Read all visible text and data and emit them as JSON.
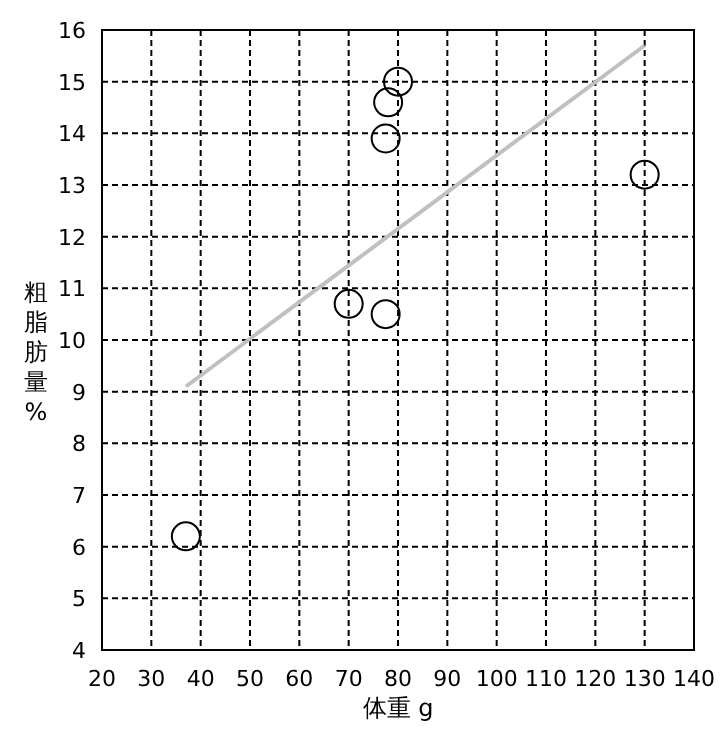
{
  "chart_data": {
    "type": "scatter",
    "xlabel": "体重 g",
    "ylabel": "粗脂肪量%",
    "xlim": [
      20,
      140
    ],
    "ylim": [
      4,
      16
    ],
    "xticks": [
      20,
      30,
      40,
      50,
      60,
      70,
      80,
      90,
      100,
      110,
      120,
      130,
      140
    ],
    "yticks": [
      4,
      5,
      6,
      7,
      8,
      9,
      10,
      11,
      12,
      13,
      14,
      15,
      16
    ],
    "grid": true,
    "series": [
      {
        "color": "#000000",
        "marker": "circle",
        "x": [
          37,
          70,
          77.5,
          77.5,
          78,
          80,
          130
        ],
        "values": [
          6.2,
          10.7,
          10.5,
          13.9,
          14.6,
          15.0,
          13.2
        ]
      },
      {
        "type": "line",
        "marker": "none",
        "color": "#c0c0c0",
        "x": [
          37,
          130
        ],
        "values": [
          9.1,
          15.7
        ]
      }
    ]
  }
}
